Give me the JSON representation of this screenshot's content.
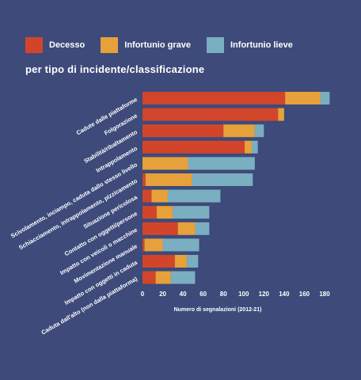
{
  "legend": [
    {
      "label": "Decesso",
      "color": "#d2452b"
    },
    {
      "label": "Infortunio grave",
      "color": "#e6a13a"
    },
    {
      "label": "Infortunio lieve",
      "color": "#7aaec1"
    }
  ],
  "subtitle": "per tipo di incidente/classificazione",
  "chart_data": {
    "type": "bar",
    "orientation": "horizontal",
    "stacked": true,
    "categories": [
      "Cadute dalle piattaforme",
      "Folgorazione",
      "Stabilità/ribaltamento",
      "Intrappolamento",
      "Scivolamento, inciampo, caduta dallo stesso livello",
      "Schiacciamento, intrappolamento, pizzicamento",
      "Situazione pericolosa",
      "Contatto con oggetti/persone",
      "Impatto con veicoli o macchine",
      "Movimentazione manuale",
      "Impatto con oggetti in caduta",
      "Caduta dall'alto (non dalla piattaforma)"
    ],
    "series": [
      {
        "name": "Decesso",
        "color": "#d2452b",
        "values": [
          141,
          134,
          80,
          101,
          0,
          3,
          9,
          14,
          35,
          2,
          32,
          13
        ]
      },
      {
        "name": "Infortunio grave",
        "color": "#e6a13a",
        "values": [
          35,
          6,
          31,
          7,
          45,
          46,
          16,
          16,
          17,
          18,
          12,
          15
        ]
      },
      {
        "name": "Infortunio lieve",
        "color": "#7aaec1",
        "values": [
          9,
          0,
          9,
          6,
          66,
          60,
          52,
          36,
          14,
          36,
          11,
          24
        ]
      }
    ],
    "xlabel": "Numero di segnalazioni (2012-21)",
    "xlim": [
      0,
      185
    ],
    "xticks": [
      0,
      20,
      40,
      60,
      80,
      100,
      120,
      140,
      160,
      180
    ],
    "xtick_labels": [
      "0",
      "20",
      "40",
      "60",
      "80",
      "100",
      "120",
      "140",
      "160",
      "180"
    ],
    "legend_position": "top-left",
    "grid": false
  }
}
